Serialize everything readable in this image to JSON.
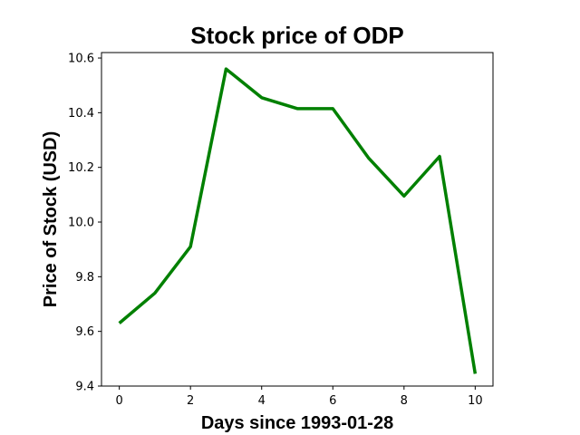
{
  "chart_data": {
    "type": "line",
    "title": "Stock price of ODP",
    "xlabel": "Days since 1993-01-28",
    "ylabel": "Price of Stock (USD)",
    "x": [
      0,
      1,
      2,
      3,
      4,
      5,
      6,
      7,
      8,
      9,
      10
    ],
    "series": [
      {
        "values": [
          9.63,
          9.74,
          9.91,
          10.56,
          10.455,
          10.415,
          10.415,
          10.235,
          10.095,
          10.24,
          9.445
        ],
        "color": "#008000"
      }
    ],
    "xlim": [
      -0.5,
      10.5
    ],
    "ylim": [
      9.4,
      10.62
    ],
    "xticks": [
      0,
      2,
      4,
      6,
      8,
      10
    ],
    "xtick_labels": [
      "0",
      "2",
      "4",
      "6",
      "8",
      "10"
    ],
    "yticks": [
      9.4,
      9.6,
      9.8,
      10.0,
      10.2,
      10.4,
      10.6
    ],
    "ytick_labels": [
      "9.4",
      "9.6",
      "9.8",
      "10.0",
      "10.2",
      "10.4",
      "10.6"
    ],
    "grid": false,
    "legend": false
  }
}
